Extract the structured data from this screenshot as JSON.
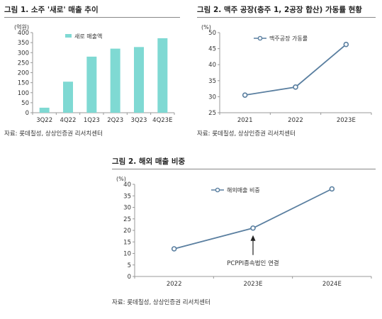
{
  "charts": [
    {
      "title": "그림 1. 소주 '새로' 매출 추이",
      "source": "자료: 롯데칠성, 상상인증권 리서치센터"
    },
    {
      "title": "그림 2. 맥주 공장(충주 1, 2공장 합산) 가동률 현황",
      "source": "자료: 롯데칠성, 상상인증권 리서치센터"
    },
    {
      "title": "그림 2. 해외 매출 비중",
      "source": "자료: 롯데칠성, 상상인증권 리서치센터"
    }
  ],
  "colors": {
    "bar": "#7fd9d3",
    "line": "#5a7fa0",
    "marker_fill": "#ffffff",
    "axis": "#999999"
  },
  "chart_data": [
    {
      "type": "bar",
      "title": "그림 1. 소주 '새로' 매출 추이",
      "ylabel": "(억원)",
      "categories": [
        "3Q22",
        "4Q22",
        "1Q23",
        "2Q23",
        "3Q23",
        "4Q23E"
      ],
      "series": [
        {
          "name": "새로 매출액",
          "values": [
            25,
            155,
            280,
            320,
            328,
            372
          ]
        }
      ],
      "ylim": [
        0,
        400
      ],
      "yticks": [
        0,
        50,
        100,
        150,
        200,
        250,
        300,
        350,
        400
      ],
      "grid": false,
      "legend": "top-left"
    },
    {
      "type": "line",
      "title": "그림 2. 맥주 공장(충주 1, 2공장 합산) 가동률 현황",
      "ylabel": "(%)",
      "categories": [
        "2021",
        "2022",
        "2023E"
      ],
      "series": [
        {
          "name": "맥주공장 가동률",
          "values": [
            30.5,
            33.0,
            46.3
          ]
        }
      ],
      "ylim": [
        25,
        50
      ],
      "yticks": [
        25,
        30,
        35,
        40,
        45,
        50
      ],
      "grid": false,
      "legend": "top-left"
    },
    {
      "type": "line",
      "title": "그림 2. 해외 매출 비중",
      "ylabel": "(%)",
      "categories": [
        "2022",
        "2023E",
        "2024E"
      ],
      "series": [
        {
          "name": "해외매출 비중",
          "values": [
            12.0,
            21.0,
            38.0
          ]
        }
      ],
      "ylim": [
        0,
        40
      ],
      "yticks": [
        0,
        5,
        10,
        15,
        20,
        25,
        30,
        35,
        40
      ],
      "grid": false,
      "legend": "top-center",
      "annotation": {
        "text": "PCPPI종속법인 연결",
        "category": "2023E"
      }
    }
  ]
}
